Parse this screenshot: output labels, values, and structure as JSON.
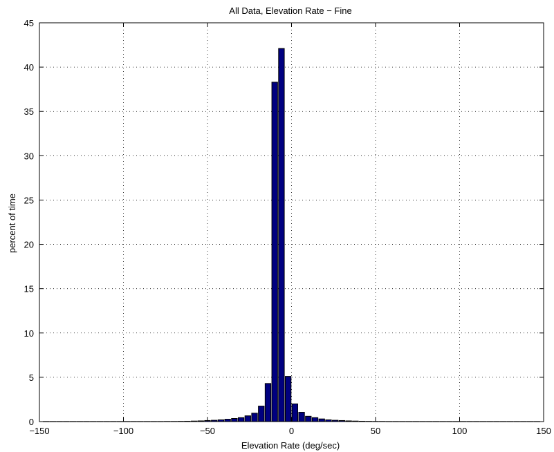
{
  "chart_data": {
    "type": "bar",
    "title": "All Data, Elevation Rate − Fine",
    "xlabel": "Elevation Rate (deg/sec)",
    "ylabel": "percent of time",
    "xlim": [
      -150,
      150
    ],
    "ylim": [
      0,
      45
    ],
    "xticks": [
      -150,
      -100,
      -50,
      0,
      50,
      100,
      150
    ],
    "yticks": [
      0,
      5,
      10,
      15,
      20,
      25,
      30,
      35,
      40,
      45
    ],
    "xtick_labels": [
      "−150",
      "−100",
      "−50",
      "0",
      "50",
      "100",
      "150"
    ],
    "ytick_labels": [
      "0",
      "5",
      "10",
      "15",
      "20",
      "25",
      "30",
      "35",
      "40",
      "45"
    ],
    "grid": true,
    "bar_width": 4,
    "bar_color": "#000080",
    "x": [
      -146,
      -142,
      -138,
      -134,
      -130,
      -126,
      -122,
      -118,
      -114,
      -110,
      -106,
      -102,
      -98,
      -94,
      -90,
      -86,
      -82,
      -78,
      -74,
      -70,
      -66,
      -62,
      -58,
      -54,
      -50,
      -46,
      -42,
      -38,
      -34,
      -30,
      -26,
      -22,
      -18,
      -14,
      -10,
      -6,
      -2,
      2,
      6,
      10,
      14,
      18,
      22,
      26,
      30,
      34,
      38,
      42,
      46,
      50,
      54,
      58,
      62,
      66,
      70,
      74,
      78,
      82,
      86,
      90,
      94,
      98,
      102,
      106,
      110,
      114,
      118,
      122,
      126,
      130,
      134,
      138,
      142,
      146
    ],
    "values": [
      0.01,
      0.01,
      0.01,
      0.01,
      0.01,
      0.01,
      0.01,
      0.01,
      0.01,
      0.01,
      0.01,
      0.01,
      0.01,
      0.01,
      0.01,
      0.01,
      0.01,
      0.01,
      0.02,
      0.02,
      0.03,
      0.04,
      0.06,
      0.08,
      0.12,
      0.15,
      0.2,
      0.27,
      0.35,
      0.45,
      0.65,
      0.95,
      1.75,
      4.3,
      38.3,
      42.1,
      5.1,
      2.0,
      1.05,
      0.6,
      0.45,
      0.3,
      0.2,
      0.15,
      0.12,
      0.08,
      0.06,
      0.04,
      0.03,
      0.02,
      0.02,
      0.01,
      0.01,
      0.01,
      0.01,
      0.01,
      0.01,
      0.01,
      0.01,
      0.01,
      0.01,
      0.01,
      0.01,
      0.01,
      0.01,
      0.01,
      0.01,
      0.01,
      0.01,
      0.01,
      0.01,
      0.01,
      0.01,
      0.01
    ]
  }
}
